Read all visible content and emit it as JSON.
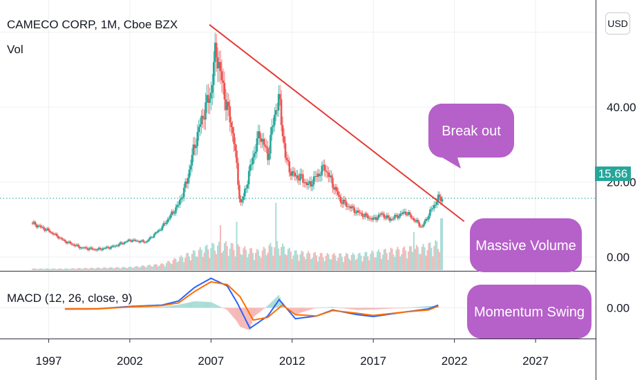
{
  "header": {
    "title": "CAMECO CORP, 1M, Cboe BZX",
    "volume_label": "Vol",
    "macd_label": "MACD (12, 26, close, 9)",
    "currency_button": "USD"
  },
  "colors": {
    "up": "#26a69a",
    "down": "#ef5350",
    "trendline": "#e53935",
    "macd_line": "#2962ff",
    "signal_line": "#ff6d00",
    "callout": "#b660c9",
    "grid": "#eef0f3"
  },
  "chart_data": [
    {
      "type": "candlestick",
      "xlim": [
        1994,
        2030.7
      ],
      "ylim": [
        -3.5,
        66
      ],
      "y_ticks": [
        "0.00",
        "20.00",
        "40.00"
      ],
      "x_ticks": [
        "1997",
        "2002",
        "2007",
        "2012",
        "2017",
        "2022",
        "2027"
      ],
      "current_price": "15.66",
      "close": [
        [
          1996.0,
          9.0
        ],
        [
          1997.0,
          7.0
        ],
        [
          1998.0,
          4.2
        ],
        [
          1999.0,
          2.5
        ],
        [
          2000.0,
          2.0
        ],
        [
          2001.0,
          2.8
        ],
        [
          2002.0,
          4.5
        ],
        [
          2003.0,
          4.0
        ],
        [
          2004.0,
          8.0
        ],
        [
          2005.0,
          14.0
        ],
        [
          2005.5,
          20.0
        ],
        [
          2006.0,
          30.0
        ],
        [
          2006.5,
          38.0
        ],
        [
          2007.0,
          44.0
        ],
        [
          2007.3,
          56.0
        ],
        [
          2007.7,
          46.0
        ],
        [
          2008.0,
          40.0
        ],
        [
          2008.4,
          32.0
        ],
        [
          2008.8,
          14.0
        ],
        [
          2009.0,
          16.0
        ],
        [
          2009.6,
          27.0
        ],
        [
          2010.0,
          33.0
        ],
        [
          2010.5,
          27.0
        ],
        [
          2011.0,
          40.0
        ],
        [
          2011.2,
          42.0
        ],
        [
          2011.6,
          26.0
        ],
        [
          2012.0,
          22.0
        ],
        [
          2012.6,
          21.0
        ],
        [
          2013.0,
          19.0
        ],
        [
          2014.0,
          24.0
        ],
        [
          2015.0,
          15.0
        ],
        [
          2016.0,
          12.0
        ],
        [
          2017.0,
          10.0
        ],
        [
          2017.5,
          11.5
        ],
        [
          2018.0,
          10.0
        ],
        [
          2019.0,
          12.0
        ],
        [
          2020.0,
          8.0
        ],
        [
          2020.5,
          12.0
        ],
        [
          2021.0,
          15.66
        ]
      ],
      "trendline": [
        [
          2006.9,
          62.0
        ],
        [
          2022.6,
          9.5
        ]
      ],
      "annotations": [
        {
          "text": "Break out"
        },
        {
          "text": "Massive Volume"
        },
        {
          "text": "Momentum Swing"
        }
      ]
    },
    {
      "type": "bar",
      "name": "Vol",
      "x": [
        1996,
        1998,
        2000,
        2002,
        2004,
        2005,
        2006,
        2007,
        2008,
        2009,
        2010,
        2011,
        2012,
        2014,
        2016,
        2018,
        2020,
        2021
      ],
      "values": [
        2,
        2,
        3,
        4,
        8,
        16,
        24,
        32,
        34,
        28,
        24,
        36,
        24,
        20,
        20,
        26,
        30,
        36
      ]
    },
    {
      "type": "line",
      "name": "MACD (12, 26, close, 9)",
      "y_ticks": [
        "0.00"
      ],
      "ylim": [
        -11,
        12
      ],
      "series": [
        {
          "values": [
            [
              1998.0,
              -0.5
            ],
            [
              2000.0,
              -0.4
            ],
            [
              2002.0,
              0.5
            ],
            [
              2004.0,
              1.0
            ],
            [
              2005.0,
              2.5
            ],
            [
              2006.0,
              7.5
            ],
            [
              2007.0,
              10.8
            ],
            [
              2008.0,
              8.0
            ],
            [
              2008.6,
              2.0
            ],
            [
              2009.4,
              -7.5
            ],
            [
              2010.5,
              -3.0
            ],
            [
              2011.2,
              3.0
            ],
            [
              2012.2,
              -4.0
            ],
            [
              2013.5,
              -3.0
            ],
            [
              2014.5,
              -0.8
            ],
            [
              2016.0,
              -2.5
            ],
            [
              2017.0,
              -3.2
            ],
            [
              2019.0,
              -1.5
            ],
            [
              2020.4,
              -0.4
            ],
            [
              2021.0,
              1.0
            ]
          ]
        },
        {
          "values": [
            [
              1998.0,
              -0.4
            ],
            [
              2000.0,
              -0.4
            ],
            [
              2002.0,
              0.3
            ],
            [
              2004.0,
              0.8
            ],
            [
              2005.0,
              1.8
            ],
            [
              2006.0,
              6.0
            ],
            [
              2007.0,
              9.5
            ],
            [
              2008.0,
              8.5
            ],
            [
              2008.8,
              4.0
            ],
            [
              2009.6,
              -4.5
            ],
            [
              2010.5,
              -3.5
            ],
            [
              2011.4,
              1.0
            ],
            [
              2012.2,
              -2.5
            ],
            [
              2013.5,
              -3.0
            ],
            [
              2014.5,
              -1.0
            ],
            [
              2016.0,
              -2.0
            ],
            [
              2017.0,
              -2.8
            ],
            [
              2019.0,
              -1.5
            ],
            [
              2020.4,
              -0.8
            ],
            [
              2021.0,
              0.6
            ]
          ]
        }
      ]
    }
  ]
}
